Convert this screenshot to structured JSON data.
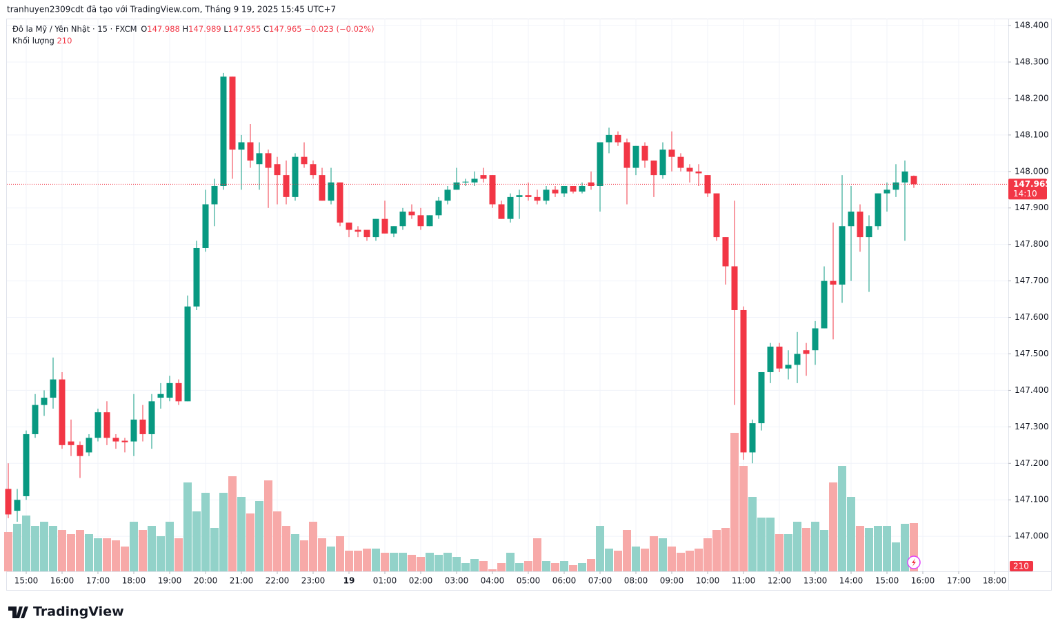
{
  "chart_data": {
    "type": "candlestick",
    "watermark": "tranhuyen2309cdt đã tạo với TradingView.com, Tháng 9 19, 2025 15:45 UTC+7",
    "symbol": "Đô la Mỹ / Yên Nhật · 15 · FXCM",
    "open_label": "O",
    "high_label": "H",
    "low_label": "L",
    "close_label": "C",
    "change": "−0.023 (−0.02%)",
    "volume_label": "Khối lượng",
    "countdown": "14:10",
    "brand": "TradingView",
    "up_color": "#089981",
    "down_color": "#f23645",
    "volume_up_color": "#92d2c9",
    "volume_down_color": "#f7a9a8",
    "grid": true,
    "ylim": [
      146.904,
      148.419
    ],
    "yticks": [
      {
        "value": 148.4,
        "label": "148.400"
      },
      {
        "value": 148.3,
        "label": "148.300"
      },
      {
        "value": 148.2,
        "label": "148.200"
      },
      {
        "value": 148.1,
        "label": "148.100"
      },
      {
        "value": 148.0,
        "label": "148.000"
      },
      {
        "value": 147.9,
        "label": "147.900"
      },
      {
        "value": 147.8,
        "label": "147.800"
      },
      {
        "value": 147.7,
        "label": "147.700"
      },
      {
        "value": 147.6,
        "label": "147.600"
      },
      {
        "value": 147.5,
        "label": "147.500"
      },
      {
        "value": 147.4,
        "label": "147.400"
      },
      {
        "value": 147.3,
        "label": "147.300"
      },
      {
        "value": 147.2,
        "label": "147.200"
      },
      {
        "value": 147.1,
        "label": "147.100"
      },
      {
        "value": 147.0,
        "label": "147.000"
      }
    ],
    "xticks": [
      {
        "value": 2,
        "label": "15:00"
      },
      {
        "value": 6,
        "label": "16:00"
      },
      {
        "value": 10,
        "label": "17:00"
      },
      {
        "value": 14,
        "label": "18:00"
      },
      {
        "value": 18,
        "label": "19:00"
      },
      {
        "value": 22,
        "label": "20:00"
      },
      {
        "value": 26,
        "label": "21:00"
      },
      {
        "value": 30,
        "label": "22:00"
      },
      {
        "value": 34,
        "label": "23:00"
      },
      {
        "value": 38,
        "label": "19"
      },
      {
        "value": 42,
        "label": "01:00"
      },
      {
        "value": 46,
        "label": "02:00"
      },
      {
        "value": 50,
        "label": "03:00"
      },
      {
        "value": 54,
        "label": "04:00"
      },
      {
        "value": 58,
        "label": "05:00"
      },
      {
        "value": 62,
        "label": "06:00"
      },
      {
        "value": 66,
        "label": "07:00"
      },
      {
        "value": 70,
        "label": "08:00"
      },
      {
        "value": 74,
        "label": "09:00"
      },
      {
        "value": 78,
        "label": "10:00"
      },
      {
        "value": 82,
        "label": "11:00"
      },
      {
        "value": 86,
        "label": "12:00"
      },
      {
        "value": 90,
        "label": "13:00"
      },
      {
        "value": 94,
        "label": "14:00"
      },
      {
        "value": 98,
        "label": "15:00"
      },
      {
        "value": 102,
        "label": "16:00"
      },
      {
        "value": 106,
        "label": "17:00"
      },
      {
        "value": 110,
        "label": "18:00"
      }
    ],
    "open": [
      147.13,
      147.07,
      147.11,
      147.28,
      147.36,
      147.38,
      147.43,
      147.26,
      147.25,
      147.23,
      147.27,
      147.34,
      147.27,
      147.262,
      147.26,
      147.32,
      147.28,
      147.38,
      147.38,
      147.42,
      147.37,
      147.63,
      147.79,
      147.91,
      147.96,
      148.26,
      148.06,
      148.08,
      148.02,
      148.05,
      148.02,
      147.99,
      147.93,
      148.04,
      148.02,
      147.99,
      147.92,
      147.97,
      147.86,
      147.84,
      147.84,
      147.82,
      147.87,
      147.83,
      147.85,
      147.89,
      147.88,
      147.85,
      147.88,
      147.92,
      147.95,
      147.97,
      147.97,
      147.99,
      147.99,
      147.91,
      147.87,
      147.93,
      147.935,
      147.93,
      147.92,
      147.95,
      147.94,
      147.96,
      147.945,
      147.97,
      147.96,
      148.08,
      148.1,
      148.08,
      148.01,
      148.07,
      148.03,
      147.99,
      148.06,
      148.04,
      148.01,
      148.0,
      147.99,
      147.94,
      147.82,
      147.74,
      147.62,
      147.23,
      147.31,
      147.45,
      147.52,
      147.46,
      147.47,
      147.51,
      147.51,
      147.57,
      147.7,
      147.69,
      147.85,
      147.89,
      147.82,
      147.85,
      147.94,
      147.95,
      147.97,
      147.988
    ],
    "high": [
      147.2,
      147.13,
      147.29,
      147.39,
      147.4,
      147.49,
      147.45,
      147.32,
      147.26,
      147.28,
      147.35,
      147.37,
      147.28,
      147.27,
      147.39,
      147.36,
      147.39,
      147.42,
      147.44,
      147.43,
      147.66,
      147.81,
      147.95,
      147.98,
      148.27,
      148.26,
      148.1,
      148.13,
      148.08,
      148.06,
      148.04,
      148.03,
      148.05,
      148.08,
      148.03,
      148.01,
      148.01,
      147.97,
      147.86,
      147.85,
      147.84,
      147.87,
      147.92,
      147.85,
      147.9,
      147.91,
      147.9,
      147.88,
      147.93,
      147.96,
      148.01,
      147.98,
      148.0,
      148.01,
      147.99,
      147.92,
      147.94,
      147.95,
      147.97,
      147.95,
      147.96,
      147.96,
      147.96,
      147.96,
      147.97,
      148.0,
      148.08,
      148.12,
      148.11,
      148.09,
      148.07,
      148.08,
      148.03,
      148.08,
      148.11,
      148.05,
      148.02,
      148.02,
      147.99,
      147.94,
      147.82,
      147.92,
      147.63,
      147.32,
      147.45,
      147.53,
      147.53,
      147.51,
      147.56,
      147.53,
      147.59,
      147.74,
      147.86,
      147.99,
      147.96,
      147.91,
      147.88,
      147.94,
      147.97,
      148.02,
      148.03,
      147.989
    ],
    "low": [
      147.05,
      147.04,
      147.1,
      147.27,
      147.33,
      147.35,
      147.24,
      147.22,
      147.16,
      147.22,
      147.26,
      147.25,
      147.24,
      147.23,
      147.22,
      147.26,
      147.24,
      147.35,
      147.37,
      147.36,
      147.37,
      147.62,
      147.78,
      147.85,
      147.95,
      147.98,
      147.95,
      148.01,
      147.95,
      147.9,
      147.91,
      147.91,
      147.92,
      148.01,
      147.98,
      147.92,
      147.91,
      147.85,
      147.82,
      147.82,
      147.81,
      147.81,
      147.83,
      147.82,
      147.84,
      147.87,
      147.84,
      147.85,
      147.87,
      147.91,
      147.95,
      147.96,
      147.96,
      147.97,
      147.9,
      147.87,
      147.86,
      147.87,
      147.92,
      147.91,
      147.91,
      147.93,
      147.93,
      147.94,
      147.94,
      147.95,
      147.89,
      148.05,
      148.07,
      147.91,
      147.99,
      148.01,
      147.93,
      147.98,
      148.0,
      148.0,
      147.97,
      147.96,
      147.93,
      147.81,
      147.69,
      147.36,
      147.21,
      147.2,
      147.29,
      147.42,
      147.45,
      147.43,
      147.42,
      147.44,
      147.47,
      147.57,
      147.54,
      147.64,
      147.7,
      147.78,
      147.67,
      147.84,
      147.89,
      147.93,
      147.81,
      147.955
    ],
    "close": [
      147.06,
      147.1,
      147.28,
      147.36,
      147.38,
      147.43,
      147.25,
      147.25,
      147.22,
      147.27,
      147.34,
      147.27,
      147.26,
      147.258,
      147.32,
      147.28,
      147.37,
      147.39,
      147.42,
      147.37,
      147.63,
      147.79,
      147.91,
      147.96,
      148.26,
      148.06,
      148.08,
      148.03,
      148.05,
      148.01,
      147.99,
      147.93,
      148.04,
      148.02,
      147.99,
      147.92,
      147.97,
      147.86,
      147.84,
      147.835,
      147.82,
      147.87,
      147.83,
      147.85,
      147.89,
      147.88,
      147.85,
      147.88,
      147.92,
      147.95,
      147.97,
      147.972,
      147.98,
      147.98,
      147.91,
      147.87,
      147.93,
      147.935,
      147.93,
      147.92,
      147.95,
      147.94,
      147.96,
      147.945,
      147.96,
      147.96,
      148.08,
      148.1,
      148.08,
      148.01,
      148.07,
      148.03,
      147.99,
      148.06,
      148.04,
      148.01,
      148.0,
      147.995,
      147.94,
      147.82,
      147.74,
      147.62,
      147.23,
      147.31,
      147.45,
      147.52,
      147.46,
      147.47,
      147.5,
      147.5,
      147.57,
      147.7,
      147.69,
      147.85,
      147.89,
      147.82,
      147.85,
      147.94,
      147.95,
      147.97,
      148.0,
      147.965
    ],
    "volume": [
      171,
      207,
      243,
      198,
      216,
      198,
      180,
      162,
      180,
      162,
      144,
      144,
      135,
      108,
      216,
      180,
      198,
      153,
      216,
      144,
      387,
      261,
      342,
      189,
      342,
      414,
      324,
      252,
      306,
      396,
      261,
      198,
      162,
      135,
      216,
      144,
      108,
      153,
      90,
      90,
      99,
      99,
      81,
      81,
      81,
      72,
      63,
      81,
      72,
      81,
      63,
      36,
      54,
      45,
      9,
      36,
      81,
      36,
      45,
      144,
      45,
      36,
      45,
      27,
      36,
      54,
      198,
      99,
      90,
      180,
      108,
      99,
      153,
      144,
      108,
      81,
      90,
      99,
      144,
      180,
      189,
      603,
      459,
      324,
      234,
      234,
      162,
      162,
      216,
      189,
      216,
      180,
      387,
      459,
      324,
      198,
      189,
      198,
      198,
      126,
      207,
      210
    ]
  }
}
